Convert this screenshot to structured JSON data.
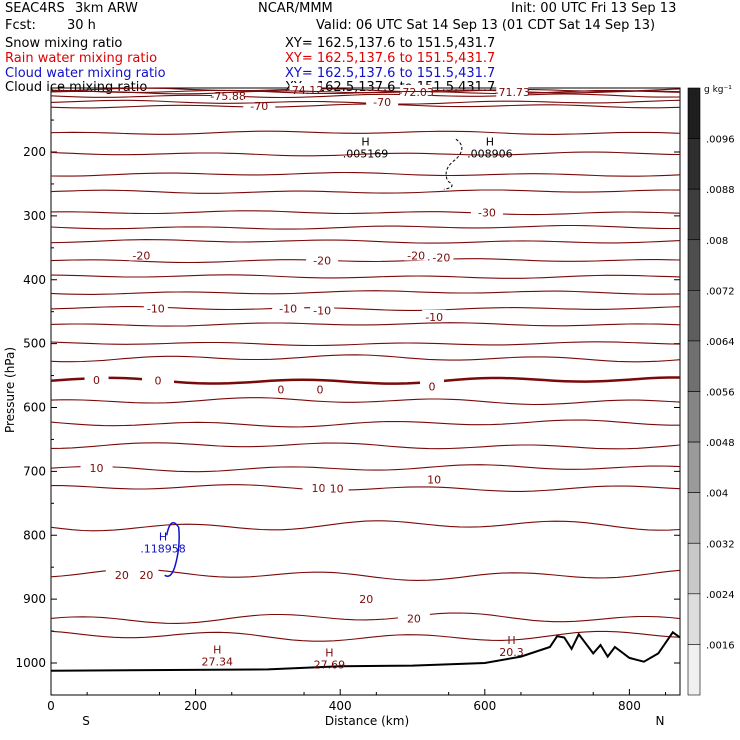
{
  "header": {
    "project": "SEAC4RS",
    "model": "3km ARW",
    "center": "NCAR/MMM",
    "init": "Init: 00 UTC Fri 13 Sep 13",
    "fcst_label": "Fcst:",
    "fcst_value": "30 h",
    "valid": "Valid: 06 UTC Sat 14 Sep 13 (01 CDT Sat 14 Sep 13)"
  },
  "fields": [
    {
      "name": "Snow mixing ratio",
      "xy": "XY= 162.5,137.6 to 151.5,431.7",
      "color": "#000000"
    },
    {
      "name": "Rain water mixing ratio",
      "xy": "XY= 162.5,137.6 to 151.5,431.7",
      "color": "#e00000"
    },
    {
      "name": "Cloud water mixing ratio",
      "xy": "XY= 162.5,137.6 to 151.5,431.7",
      "color": "#1010c8"
    },
    {
      "name": "Cloud ice mixing ratio",
      "xy": "XY= 162.5,137.6 to 151.5,431.7",
      "color": "#000000"
    }
  ],
  "colorbar": {
    "unit": "g kg⁻¹",
    "ticks": [
      ".0096",
      ".0088",
      ".008",
      ".0072",
      ".0064",
      ".0056",
      ".0048",
      ".004",
      ".0032",
      ".0024",
      ".0016"
    ]
  },
  "chart_data": {
    "type": "contour",
    "ylabel": "Pressure (hPa)",
    "xlabel": "Distance (km)",
    "x_ticks": [
      0,
      200,
      400,
      600,
      800
    ],
    "x_tick_labels": [
      "0",
      "200",
      "400",
      "600",
      "800"
    ],
    "y_ticks": [
      200,
      300,
      400,
      500,
      600,
      700,
      800,
      900,
      1000
    ],
    "y_tick_labels": [
      "200",
      "300",
      "400",
      "500",
      "600",
      "700",
      "800",
      "900",
      "1000"
    ],
    "xlim": [
      0,
      870
    ],
    "ylim": [
      1050,
      100
    ],
    "end_labels": {
      "left": "S",
      "right": "N"
    },
    "temperature_levels": [
      {
        "p": 112,
        "label": "-75.88",
        "lx": 245
      },
      {
        "p": 103,
        "label": "-74.12",
        "lx": 352
      },
      {
        "p": 106,
        "label": "-72.03",
        "lx": 505
      },
      {
        "p": 106,
        "label": "-71.73",
        "lx": 638
      },
      {
        "p": 128,
        "label": "-70",
        "lx": 288
      },
      {
        "p": 122,
        "label": "-70",
        "lx": 458
      },
      {
        "p": 170,
        "label": "",
        "lx": null
      },
      {
        "p": 203,
        "label": "",
        "lx": null
      },
      {
        "p": 235,
        "label": "",
        "lx": null
      },
      {
        "p": 262,
        "label": "",
        "lx": null
      },
      {
        "p": 295,
        "label": "-30",
        "lx": 603
      },
      {
        "p": 318,
        "label": "",
        "lx": null
      },
      {
        "p": 340,
        "label": "",
        "lx": null
      },
      {
        "p": 370,
        "label": "-20",
        "lx": 375
      },
      {
        "p": 395,
        "label": "",
        "lx": null
      },
      {
        "p": 420,
        "label": "",
        "lx": null
      },
      {
        "p": 445,
        "label": "-10",
        "lx": 328
      },
      {
        "p": 470,
        "label": "",
        "lx": null
      },
      {
        "p": 500,
        "label": "",
        "lx": null
      },
      {
        "p": 523,
        "label": "",
        "lx": null
      },
      {
        "p": 558,
        "label": "0",
        "lx": 148,
        "bold": true
      },
      {
        "p": 590,
        "label": "",
        "lx": null
      },
      {
        "p": 625,
        "label": "",
        "lx": null
      },
      {
        "p": 660,
        "label": "",
        "lx": null
      },
      {
        "p": 695,
        "label": "10",
        "lx": 63
      },
      {
        "p": 726,
        "label": "10",
        "lx": 370
      },
      {
        "p": 785,
        "label": "",
        "lx": null
      },
      {
        "p": 862,
        "label": "20",
        "lx": 98
      },
      {
        "p": 930,
        "label": "20",
        "lx": 502
      },
      {
        "p": 958,
        "label": "",
        "lx": null
      }
    ],
    "annotations": [
      {
        "text": "H",
        "sub": ".005169",
        "x": 435,
        "p": 190,
        "color": "#000000"
      },
      {
        "text": "H",
        "sub": ".008906",
        "x": 607,
        "p": 190,
        "color": "#000000"
      },
      {
        "text": "H",
        "sub": ".118958",
        "x": 155,
        "p": 808,
        "color": "#1010c8"
      },
      {
        "text": "H",
        "sub": "27.34",
        "x": 230,
        "p": 985,
        "color": "#7a0a0a"
      },
      {
        "text": "H",
        "sub": "27.69",
        "x": 385,
        "p": 990,
        "color": "#7a0a0a"
      },
      {
        "text": "H",
        "sub": "20.3",
        "x": 637,
        "p": 970,
        "color": "#7a0a0a"
      }
    ],
    "extra_labels": [
      {
        "text": "-20",
        "x": 125,
        "p": 362
      },
      {
        "text": "-20",
        "x": 505,
        "p": 362
      },
      {
        "text": "-20",
        "x": 540,
        "p": 365
      },
      {
        "text": "-10",
        "x": 145,
        "p": 445
      },
      {
        "text": "-10",
        "x": 375,
        "p": 448
      },
      {
        "text": "-10",
        "x": 530,
        "p": 458
      },
      {
        "text": "0",
        "x": 63,
        "p": 557
      },
      {
        "text": "0",
        "x": 318,
        "p": 572
      },
      {
        "text": "0",
        "x": 372,
        "p": 572
      },
      {
        "text": "0",
        "x": 527,
        "p": 567
      },
      {
        "text": "10",
        "x": 395,
        "p": 727
      },
      {
        "text": "10",
        "x": 530,
        "p": 713
      },
      {
        "text": "20",
        "x": 132,
        "p": 862
      },
      {
        "text": "20",
        "x": 436,
        "p": 900
      }
    ]
  }
}
